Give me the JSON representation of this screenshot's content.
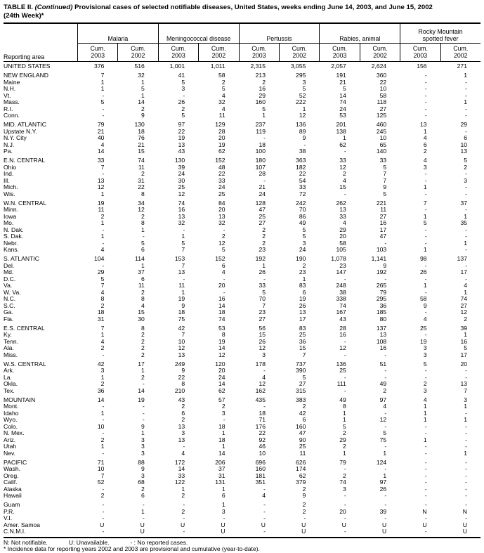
{
  "title": {
    "prefix": "TABLE II.",
    "continued": "(Continued)",
    "main": "Provisional cases of selected notifiable diseases, United States, weeks ending June 14, 2003, and June 15, 2002",
    "week": "(24th Week)*"
  },
  "table": {
    "reporting_area_label": "Reporting area",
    "groups": [
      {
        "label": "Malaria"
      },
      {
        "label": "Meningococcal disease"
      },
      {
        "label": "Pertussis"
      },
      {
        "label": "Rabies, animal"
      },
      {
        "label": "Rocky Mountain spotted fever"
      }
    ],
    "subcolumns": [
      {
        "line1": "Cum.",
        "line2": "2003"
      },
      {
        "line1": "Cum.",
        "line2": "2002"
      }
    ],
    "rows": [
      {
        "area": "UNITED STATES",
        "level": "total",
        "gap_before": false,
        "values": [
          "376",
          "516",
          "1,001",
          "1,011",
          "2,315",
          "3,055",
          "2,057",
          "2,624",
          "156",
          "271"
        ]
      },
      {
        "area": "NEW ENGLAND",
        "level": "section",
        "gap_before": true,
        "values": [
          "7",
          "32",
          "41",
          "58",
          "213",
          "295",
          "191",
          "360",
          "-",
          "1"
        ]
      },
      {
        "area": "Maine",
        "level": "state",
        "gap_before": false,
        "values": [
          "1",
          "1",
          "5",
          "2",
          "2",
          "3",
          "21",
          "22",
          "-",
          "-"
        ]
      },
      {
        "area": "N.H.",
        "level": "state",
        "gap_before": false,
        "values": [
          "1",
          "5",
          "3",
          "5",
          "16",
          "5",
          "5",
          "10",
          "-",
          "-"
        ]
      },
      {
        "area": "Vt.",
        "level": "state",
        "gap_before": false,
        "values": [
          "-",
          "1",
          "-",
          "4",
          "29",
          "52",
          "14",
          "58",
          "-",
          "-"
        ]
      },
      {
        "area": "Mass.",
        "level": "state",
        "gap_before": false,
        "values": [
          "5",
          "14",
          "26",
          "32",
          "160",
          "222",
          "74",
          "118",
          "-",
          "1"
        ]
      },
      {
        "area": "R.I.",
        "level": "state",
        "gap_before": false,
        "values": [
          "-",
          "2",
          "2",
          "4",
          "5",
          "1",
          "24",
          "27",
          "-",
          "-"
        ]
      },
      {
        "area": "Conn.",
        "level": "state",
        "gap_before": false,
        "values": [
          "-",
          "9",
          "5",
          "11",
          "1",
          "12",
          "53",
          "125",
          "-",
          "-"
        ]
      },
      {
        "area": "MID. ATLANTIC",
        "level": "section",
        "gap_before": true,
        "values": [
          "79",
          "130",
          "97",
          "129",
          "237",
          "136",
          "201",
          "460",
          "13",
          "29"
        ]
      },
      {
        "area": "Upstate N.Y.",
        "level": "state",
        "gap_before": false,
        "values": [
          "21",
          "18",
          "22",
          "28",
          "119",
          "89",
          "138",
          "245",
          "1",
          "-"
        ]
      },
      {
        "area": "N.Y. City",
        "level": "state",
        "gap_before": false,
        "values": [
          "40",
          "76",
          "19",
          "20",
          "-",
          "9",
          "1",
          "10",
          "4",
          "6"
        ]
      },
      {
        "area": "N.J.",
        "level": "state",
        "gap_before": false,
        "values": [
          "4",
          "21",
          "13",
          "19",
          "18",
          "-",
          "62",
          "65",
          "6",
          "10"
        ]
      },
      {
        "area": "Pa.",
        "level": "state",
        "gap_before": false,
        "values": [
          "14",
          "15",
          "43",
          "62",
          "100",
          "38",
          "-",
          "140",
          "2",
          "13"
        ]
      },
      {
        "area": "E.N. CENTRAL",
        "level": "section",
        "gap_before": true,
        "values": [
          "33",
          "74",
          "130",
          "152",
          "180",
          "363",
          "33",
          "33",
          "4",
          "5"
        ]
      },
      {
        "area": "Ohio",
        "level": "state",
        "gap_before": false,
        "values": [
          "7",
          "11",
          "39",
          "48",
          "107",
          "182",
          "12",
          "5",
          "3",
          "2"
        ]
      },
      {
        "area": "Ind.",
        "level": "state",
        "gap_before": false,
        "values": [
          "-",
          "2",
          "24",
          "22",
          "28",
          "22",
          "2",
          "7",
          "-",
          "-"
        ]
      },
      {
        "area": "Ill.",
        "level": "state",
        "gap_before": false,
        "values": [
          "13",
          "31",
          "30",
          "33",
          "-",
          "54",
          "4",
          "7",
          "-",
          "3"
        ]
      },
      {
        "area": "Mich.",
        "level": "state",
        "gap_before": false,
        "values": [
          "12",
          "22",
          "25",
          "24",
          "21",
          "33",
          "15",
          "9",
          "1",
          "-"
        ]
      },
      {
        "area": "Wis.",
        "level": "state",
        "gap_before": false,
        "values": [
          "1",
          "8",
          "12",
          "25",
          "24",
          "72",
          "-",
          "5",
          "-",
          "-"
        ]
      },
      {
        "area": "W.N. CENTRAL",
        "level": "section",
        "gap_before": true,
        "values": [
          "19",
          "34",
          "74",
          "84",
          "128",
          "242",
          "262",
          "221",
          "7",
          "37"
        ]
      },
      {
        "area": "Minn.",
        "level": "state",
        "gap_before": false,
        "values": [
          "11",
          "12",
          "16",
          "20",
          "47",
          "70",
          "13",
          "11",
          "-",
          "-"
        ]
      },
      {
        "area": "Iowa",
        "level": "state",
        "gap_before": false,
        "values": [
          "2",
          "2",
          "13",
          "13",
          "25",
          "86",
          "33",
          "27",
          "1",
          "1"
        ]
      },
      {
        "area": "Mo.",
        "level": "state",
        "gap_before": false,
        "values": [
          "1",
          "8",
          "32",
          "32",
          "27",
          "49",
          "4",
          "16",
          "5",
          "35"
        ]
      },
      {
        "area": "N. Dak.",
        "level": "state",
        "gap_before": false,
        "values": [
          "-",
          "1",
          "-",
          "-",
          "2",
          "5",
          "29",
          "17",
          "-",
          "-"
        ]
      },
      {
        "area": "S. Dak.",
        "level": "state",
        "gap_before": false,
        "values": [
          "1",
          "-",
          "1",
          "2",
          "2",
          "5",
          "20",
          "47",
          "-",
          "-"
        ]
      },
      {
        "area": "Nebr.",
        "level": "state",
        "gap_before": false,
        "values": [
          "-",
          "5",
          "5",
          "12",
          "2",
          "3",
          "58",
          "-",
          "-",
          "1"
        ]
      },
      {
        "area": "Kans.",
        "level": "state",
        "gap_before": false,
        "values": [
          "4",
          "6",
          "7",
          "5",
          "23",
          "24",
          "105",
          "103",
          "1",
          "-"
        ]
      },
      {
        "area": "S. ATLANTIC",
        "level": "section",
        "gap_before": true,
        "values": [
          "104",
          "114",
          "153",
          "152",
          "192",
          "190",
          "1,078",
          "1,141",
          "98",
          "137"
        ]
      },
      {
        "area": "Del.",
        "level": "state",
        "gap_before": false,
        "values": [
          "-",
          "1",
          "7",
          "6",
          "1",
          "2",
          "23",
          "9",
          "-",
          "-"
        ]
      },
      {
        "area": "Md.",
        "level": "state",
        "gap_before": false,
        "values": [
          "29",
          "37",
          "13",
          "4",
          "26",
          "23",
          "147",
          "192",
          "26",
          "17"
        ]
      },
      {
        "area": "D.C.",
        "level": "state",
        "gap_before": false,
        "values": [
          "5",
          "6",
          "-",
          "-",
          "-",
          "1",
          "-",
          "-",
          "-",
          "-"
        ]
      },
      {
        "area": "Va.",
        "level": "state",
        "gap_before": false,
        "values": [
          "7",
          "11",
          "11",
          "20",
          "33",
          "83",
          "248",
          "265",
          "1",
          "4"
        ]
      },
      {
        "area": "W. Va.",
        "level": "state",
        "gap_before": false,
        "values": [
          "4",
          "2",
          "1",
          "-",
          "5",
          "6",
          "38",
          "79",
          "-",
          "1"
        ]
      },
      {
        "area": "N.C.",
        "level": "state",
        "gap_before": false,
        "values": [
          "8",
          "8",
          "19",
          "16",
          "70",
          "19",
          "338",
          "295",
          "58",
          "74"
        ]
      },
      {
        "area": "S.C.",
        "level": "state",
        "gap_before": false,
        "values": [
          "2",
          "4",
          "9",
          "14",
          "7",
          "26",
          "74",
          "36",
          "9",
          "27"
        ]
      },
      {
        "area": "Ga.",
        "level": "state",
        "gap_before": false,
        "values": [
          "18",
          "15",
          "18",
          "18",
          "23",
          "13",
          "167",
          "185",
          "-",
          "12"
        ]
      },
      {
        "area": "Fla.",
        "level": "state",
        "gap_before": false,
        "values": [
          "31",
          "30",
          "75",
          "74",
          "27",
          "17",
          "43",
          "80",
          "4",
          "2"
        ]
      },
      {
        "area": "E.S. CENTRAL",
        "level": "section",
        "gap_before": true,
        "values": [
          "7",
          "8",
          "42",
          "53",
          "56",
          "83",
          "28",
          "137",
          "25",
          "39"
        ]
      },
      {
        "area": "Ky.",
        "level": "state",
        "gap_before": false,
        "values": [
          "1",
          "2",
          "7",
          "8",
          "15",
          "25",
          "16",
          "13",
          "-",
          "1"
        ]
      },
      {
        "area": "Tenn.",
        "level": "state",
        "gap_before": false,
        "values": [
          "4",
          "2",
          "10",
          "19",
          "26",
          "36",
          "-",
          "108",
          "19",
          "16"
        ]
      },
      {
        "area": "Ala.",
        "level": "state",
        "gap_before": false,
        "values": [
          "2",
          "2",
          "12",
          "14",
          "12",
          "15",
          "12",
          "16",
          "3",
          "5"
        ]
      },
      {
        "area": "Miss.",
        "level": "state",
        "gap_before": false,
        "values": [
          "-",
          "2",
          "13",
          "12",
          "3",
          "7",
          "-",
          "-",
          "3",
          "17"
        ]
      },
      {
        "area": "W.S. CENTRAL",
        "level": "section",
        "gap_before": true,
        "values": [
          "42",
          "17",
          "249",
          "120",
          "178",
          "737",
          "136",
          "51",
          "5",
          "20"
        ]
      },
      {
        "area": "Ark.",
        "level": "state",
        "gap_before": false,
        "values": [
          "3",
          "1",
          "9",
          "20",
          "-",
          "390",
          "25",
          "-",
          "-",
          "-"
        ]
      },
      {
        "area": "La.",
        "level": "state",
        "gap_before": false,
        "values": [
          "1",
          "2",
          "22",
          "24",
          "4",
          "5",
          "-",
          "-",
          "-",
          "-"
        ]
      },
      {
        "area": "Okla.",
        "level": "state",
        "gap_before": false,
        "values": [
          "2",
          "-",
          "8",
          "14",
          "12",
          "27",
          "111",
          "49",
          "2",
          "13"
        ]
      },
      {
        "area": "Tex.",
        "level": "state",
        "gap_before": false,
        "values": [
          "36",
          "14",
          "210",
          "62",
          "162",
          "315",
          "-",
          "2",
          "3",
          "7"
        ]
      },
      {
        "area": "MOUNTAIN",
        "level": "section",
        "gap_before": true,
        "values": [
          "14",
          "19",
          "43",
          "57",
          "435",
          "383",
          "49",
          "97",
          "4",
          "3"
        ]
      },
      {
        "area": "Mont.",
        "level": "state",
        "gap_before": false,
        "values": [
          "-",
          "-",
          "2",
          "2",
          "-",
          "2",
          "8",
          "4",
          "1",
          "1"
        ]
      },
      {
        "area": "Idaho",
        "level": "state",
        "gap_before": false,
        "values": [
          "1",
          "-",
          "6",
          "3",
          "18",
          "42",
          "1",
          "-",
          "1",
          "-"
        ]
      },
      {
        "area": "Wyo.",
        "level": "state",
        "gap_before": false,
        "values": [
          "-",
          "-",
          "2",
          "-",
          "71",
          "6",
          "1",
          "12",
          "1",
          "1"
        ]
      },
      {
        "area": "Colo.",
        "level": "state",
        "gap_before": false,
        "values": [
          "10",
          "9",
          "13",
          "18",
          "176",
          "160",
          "5",
          "-",
          "-",
          "-"
        ]
      },
      {
        "area": "N. Mex.",
        "level": "state",
        "gap_before": false,
        "values": [
          "-",
          "1",
          "3",
          "1",
          "22",
          "47",
          "2",
          "5",
          "-",
          "-"
        ]
      },
      {
        "area": "Ariz.",
        "level": "state",
        "gap_before": false,
        "values": [
          "2",
          "3",
          "13",
          "18",
          "92",
          "90",
          "29",
          "75",
          "1",
          "-"
        ]
      },
      {
        "area": "Utah",
        "level": "state",
        "gap_before": false,
        "values": [
          "1",
          "3",
          "-",
          "1",
          "46",
          "25",
          "2",
          "-",
          "-",
          "-"
        ]
      },
      {
        "area": "Nev.",
        "level": "state",
        "gap_before": false,
        "values": [
          "-",
          "3",
          "4",
          "14",
          "10",
          "11",
          "1",
          "1",
          "-",
          "1"
        ]
      },
      {
        "area": "PACIFIC",
        "level": "section",
        "gap_before": true,
        "values": [
          "71",
          "88",
          "172",
          "206",
          "696",
          "626",
          "79",
          "124",
          "-",
          "-"
        ]
      },
      {
        "area": "Wash.",
        "level": "state",
        "gap_before": false,
        "values": [
          "10",
          "9",
          "14",
          "37",
          "160",
          "174",
          "-",
          "-",
          "-",
          "-"
        ]
      },
      {
        "area": "Oreg.",
        "level": "state",
        "gap_before": false,
        "values": [
          "7",
          "3",
          "33",
          "31",
          "181",
          "62",
          "2",
          "1",
          "-",
          "-"
        ]
      },
      {
        "area": "Calif.",
        "level": "state",
        "gap_before": false,
        "values": [
          "52",
          "68",
          "122",
          "131",
          "351",
          "379",
          "74",
          "97",
          "-",
          "-"
        ]
      },
      {
        "area": "Alaska",
        "level": "state",
        "gap_before": false,
        "values": [
          "-",
          "2",
          "1",
          "1",
          "-",
          "2",
          "3",
          "26",
          "-",
          "-"
        ]
      },
      {
        "area": "Hawaii",
        "level": "state",
        "gap_before": false,
        "values": [
          "2",
          "6",
          "2",
          "6",
          "4",
          "9",
          "-",
          "-",
          "-",
          "-"
        ]
      },
      {
        "area": "Guam",
        "level": "territory",
        "gap_before": true,
        "values": [
          "-",
          "-",
          "-",
          "1",
          "-",
          "2",
          "-",
          "-",
          "-",
          "-"
        ]
      },
      {
        "area": "P.R.",
        "level": "territory",
        "gap_before": false,
        "values": [
          "-",
          "1",
          "2",
          "3",
          "-",
          "2",
          "20",
          "39",
          "N",
          "N"
        ]
      },
      {
        "area": "V.I.",
        "level": "territory",
        "gap_before": false,
        "values": [
          "-",
          "-",
          "-",
          "-",
          "-",
          "-",
          "-",
          "-",
          "-",
          "-"
        ]
      },
      {
        "area": "Amer. Samoa",
        "level": "territory",
        "gap_before": false,
        "values": [
          "U",
          "U",
          "U",
          "U",
          "U",
          "U",
          "U",
          "U",
          "U",
          "U"
        ]
      },
      {
        "area": "C.N.M.I.",
        "level": "territory",
        "gap_before": false,
        "values": [
          "-",
          "U",
          "-",
          "U",
          "-",
          "U",
          "-",
          "U",
          "-",
          "U"
        ]
      }
    ]
  },
  "footnotes": {
    "legend": [
      "N: Not notifiable.",
      "U: Unavailable.",
      "- : No reported cases."
    ],
    "note": "* Incidence data for reporting years 2002 and 2003 are provisional and cumulative (year-to-date)."
  }
}
